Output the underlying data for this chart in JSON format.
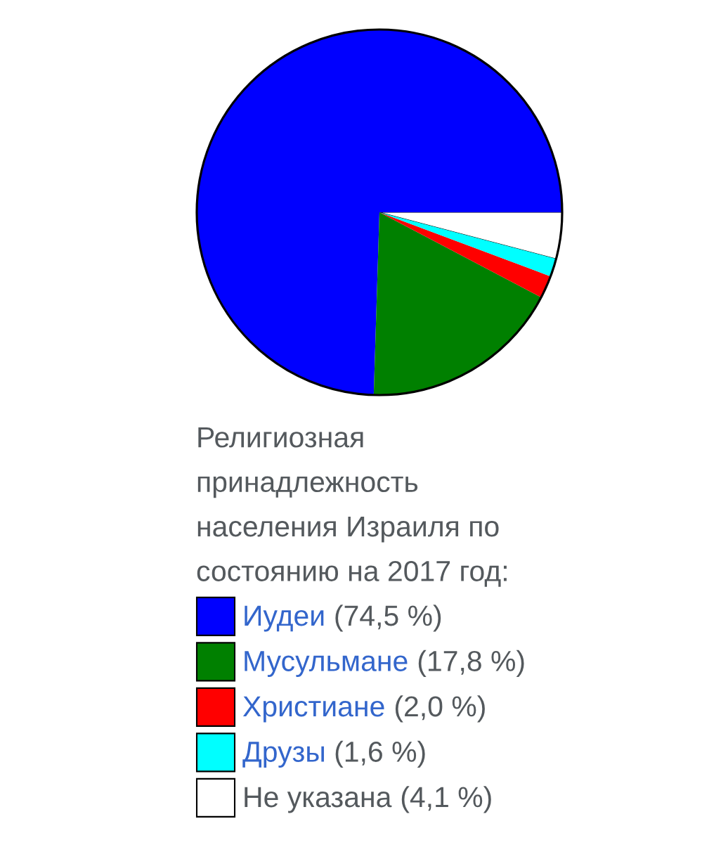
{
  "chart_data": {
    "type": "pie",
    "legend_title": "Религиозная принадлежность населения Израиля по состоянию на 2017 год:",
    "categories": [
      "Иудеи",
      "Мусульмане",
      "Христиане",
      "Друзы",
      "Не указана"
    ],
    "values": [
      74.5,
      17.8,
      2.0,
      1.6,
      4.1
    ],
    "colors": [
      "#0000ff",
      "#008000",
      "#ff0000",
      "#00ffff",
      "#ffffff"
    ],
    "value_labels": [
      "(74,5 %)",
      "(17,8 %)",
      "(2,0 %)",
      "(1,6 %)",
      "(4,1 %)"
    ],
    "legend": "bottom"
  }
}
